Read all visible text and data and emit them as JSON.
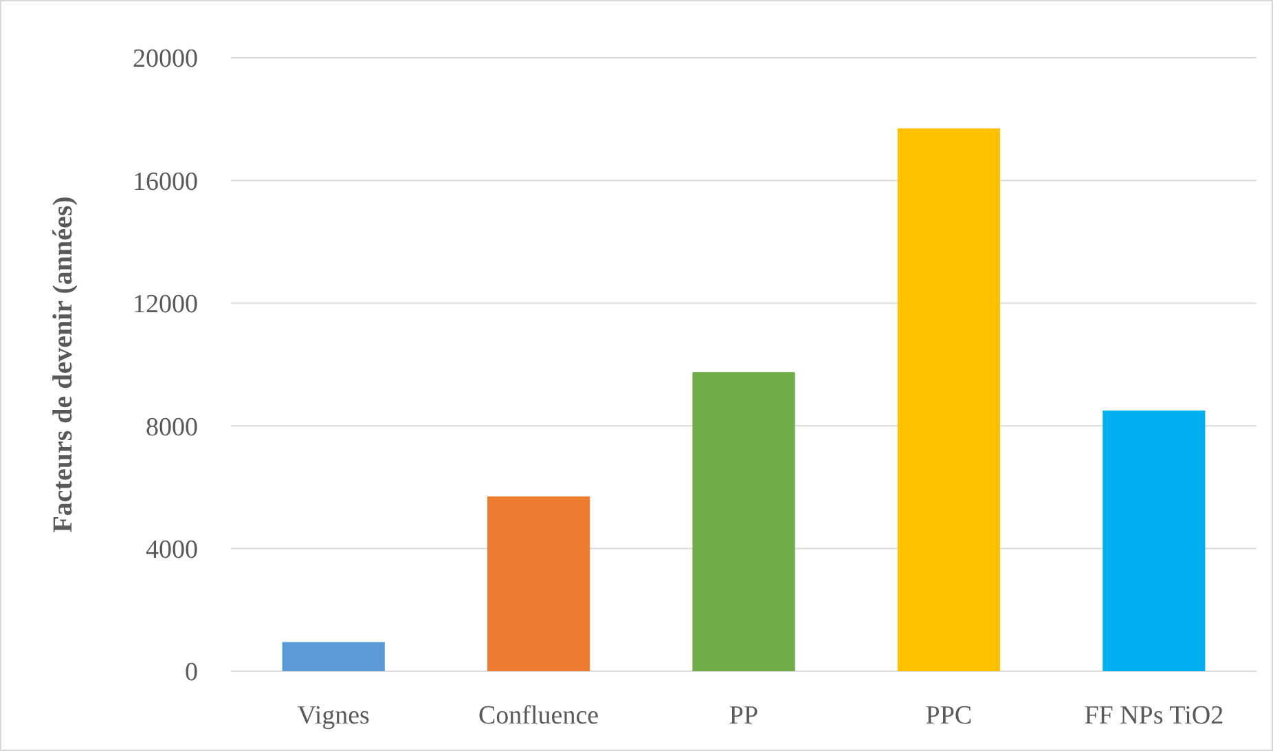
{
  "chart_data": {
    "type": "bar",
    "ylabel": "Facteurs de devenir (années)",
    "categories": [
      "Vignes",
      "Confluence",
      "PP",
      "PPC",
      "FF NPs TiO2"
    ],
    "values": [
      950,
      5700,
      9750,
      17700,
      8500
    ],
    "colors": [
      "#5b9bd5",
      "#ed7d31",
      "#70ad47",
      "#ffc000",
      "#00b0f0"
    ],
    "ylim": [
      0,
      20000
    ],
    "yticks": [
      0,
      4000,
      8000,
      12000,
      16000,
      20000
    ],
    "grid": "y"
  }
}
